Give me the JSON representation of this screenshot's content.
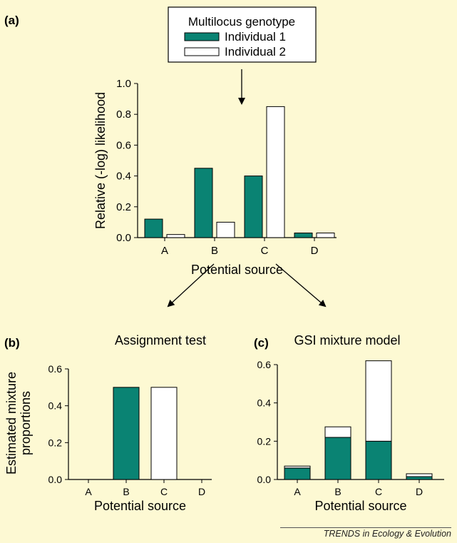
{
  "panel_labels": {
    "a": "(a)",
    "b": "(b)",
    "c": "(c)"
  },
  "legend": {
    "title": "Multilocus genotype",
    "items": [
      {
        "label": "Individual 1",
        "color": "#0a8373"
      },
      {
        "label": "Individual 2",
        "color": "#ffffff"
      }
    ]
  },
  "colors": {
    "individual1": "#0a8373",
    "individual2": "#ffffff",
    "background": "#fdf9d3"
  },
  "footer": "TRENDS in Ecology & Evolution",
  "chart_data": [
    {
      "id": "a",
      "type": "bar",
      "title": "",
      "xlabel": "Potential source",
      "ylabel": "Relative (-log) likelihood",
      "categories": [
        "A",
        "B",
        "C",
        "D"
      ],
      "ylim": [
        0,
        1.0
      ],
      "yticks": [
        "0.0",
        "0.2",
        "0.4",
        "0.6",
        "0.8",
        "1.0"
      ],
      "series": [
        {
          "name": "Individual 1",
          "values": [
            0.12,
            0.45,
            0.4,
            0.03
          ]
        },
        {
          "name": "Individual 2",
          "values": [
            0.02,
            0.1,
            0.85,
            0.03
          ]
        }
      ]
    },
    {
      "id": "b",
      "type": "bar",
      "title": "Assignment test",
      "xlabel": "Potential source",
      "ylabel": "Estimated mixture proportions",
      "categories": [
        "A",
        "B",
        "C",
        "D"
      ],
      "ylim": [
        0,
        0.6
      ],
      "yticks": [
        "0.0",
        "0.2",
        "0.4",
        "0.6"
      ],
      "series": [
        {
          "name": "Individual 1",
          "values": [
            0,
            0.5,
            0,
            0
          ]
        },
        {
          "name": "Individual 2",
          "values": [
            0,
            0,
            0.5,
            0
          ]
        }
      ]
    },
    {
      "id": "c",
      "type": "bar",
      "stacked": true,
      "title": "GSI mixture model",
      "xlabel": "Potential source",
      "ylabel": "",
      "categories": [
        "A",
        "B",
        "C",
        "D"
      ],
      "ylim": [
        0,
        0.6
      ],
      "yticks": [
        "0.0",
        "0.2",
        "0.4",
        "0.6"
      ],
      "series": [
        {
          "name": "Individual 1",
          "values": [
            0.06,
            0.22,
            0.2,
            0.015
          ]
        },
        {
          "name": "Individual 2",
          "values": [
            0.01,
            0.055,
            0.42,
            0.015
          ]
        }
      ]
    }
  ]
}
